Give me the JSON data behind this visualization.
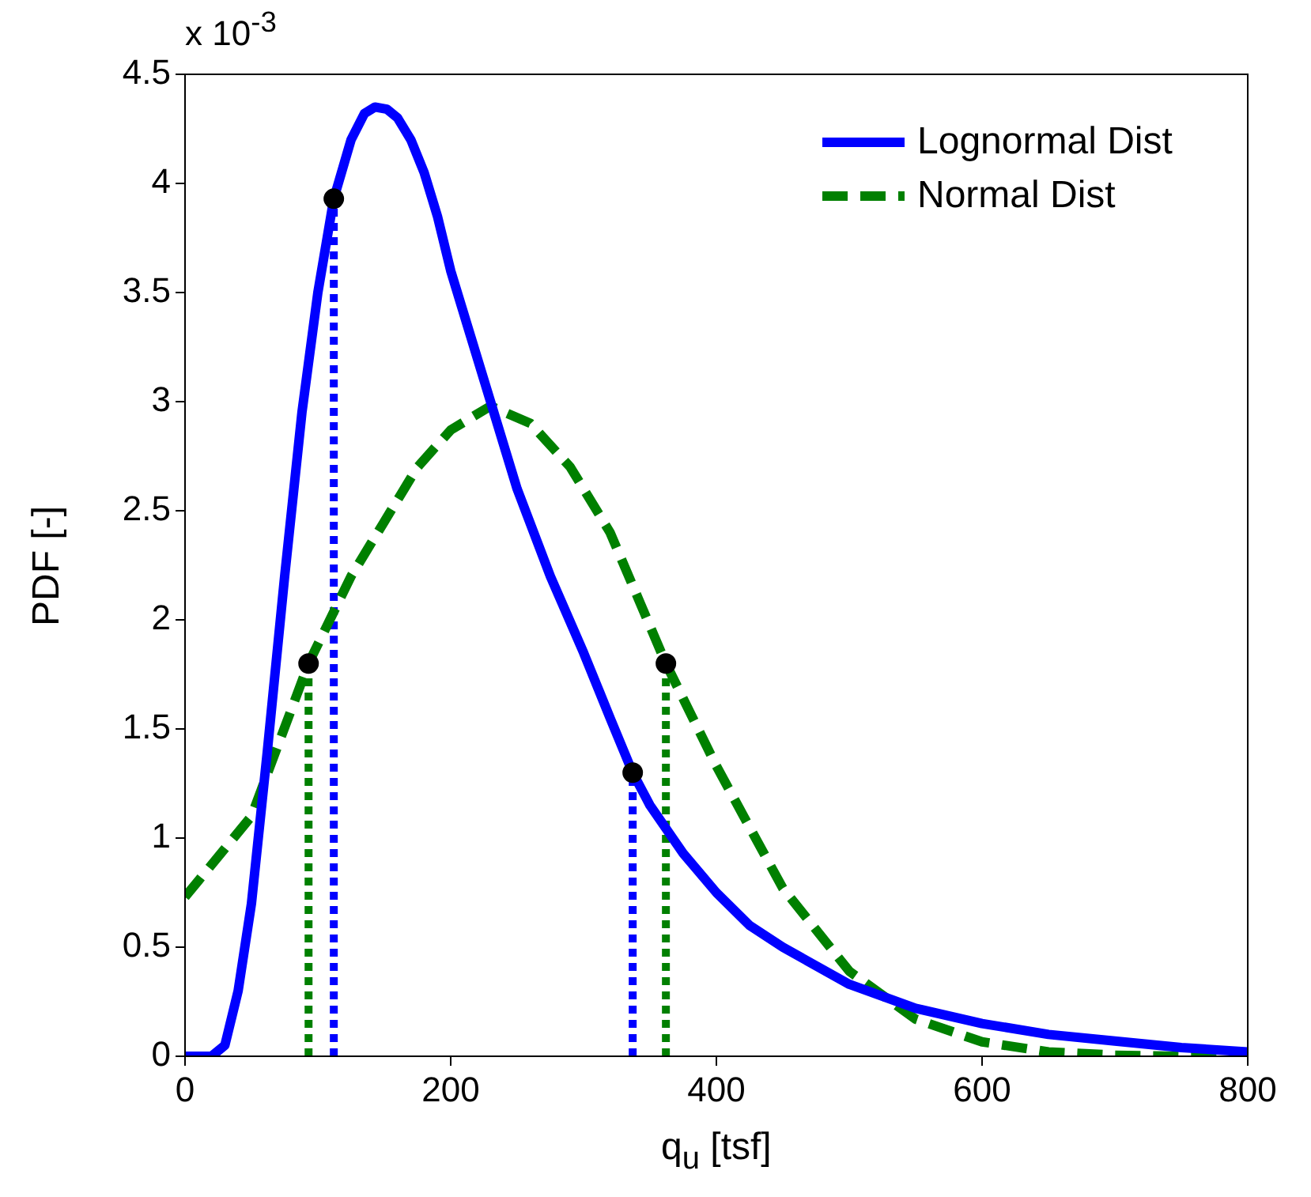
{
  "chart_data": {
    "type": "line",
    "xlabel": "q$_{u}$ [tsf]",
    "ylabel": "PDF [-]",
    "annotations": [
      "x 10$^{-3}$"
    ],
    "xlim": [
      0,
      800
    ],
    "xticks": [
      0,
      200,
      400,
      600,
      800
    ],
    "ylim": [
      0,
      4.5
    ],
    "yticks": [
      0,
      0.5,
      1,
      1.5,
      2,
      2.5,
      3,
      3.5,
      4,
      4.5
    ],
    "grid": false,
    "legend": "top right",
    "series": [
      {
        "name": "Lognormal Dist",
        "color": "#0000ff",
        "line_style": "solid",
        "marker": "none",
        "x": [
          0,
          20,
          30,
          40,
          50,
          62,
          75,
          88,
          100,
          112,
          125,
          135,
          143,
          152,
          160,
          170,
          180,
          190,
          200,
          215,
          230,
          250,
          275,
          300,
          320,
          337,
          350,
          375,
          400,
          425,
          450,
          500,
          550,
          600,
          650,
          700,
          750,
          800
        ],
        "values": [
          0,
          0,
          0.05,
          0.3,
          0.7,
          1.4,
          2.2,
          2.95,
          3.5,
          3.93,
          4.2,
          4.32,
          4.35,
          4.34,
          4.3,
          4.2,
          4.05,
          3.85,
          3.6,
          3.3,
          3.0,
          2.6,
          2.2,
          1.85,
          1.55,
          1.3,
          1.15,
          0.93,
          0.75,
          0.6,
          0.5,
          0.33,
          0.22,
          0.15,
          0.1,
          0.07,
          0.04,
          0.02
        ]
      },
      {
        "name": "Normal Dist",
        "color": "#008000",
        "line_style": "dashed",
        "marker": "none",
        "x": [
          0,
          50,
          93,
          125,
          150,
          175,
          200,
          230,
          260,
          290,
          320,
          362,
          400,
          450,
          500,
          550,
          600,
          650,
          700,
          750,
          800
        ],
        "values": [
          0.73,
          1.1,
          1.8,
          2.2,
          2.45,
          2.7,
          2.87,
          2.98,
          2.9,
          2.7,
          2.4,
          1.8,
          1.33,
          0.77,
          0.39,
          0.17,
          0.066,
          0.02,
          0.005,
          0,
          0
        ]
      },
      {
        "color": "#0000ff",
        "line_style": "dotted",
        "marker": "none",
        "x": [
          112,
          112
        ],
        "values": [
          0,
          3.93
        ]
      },
      {
        "color": "#0000ff",
        "line_style": "dotted",
        "marker": "none",
        "x": [
          337,
          337
        ],
        "values": [
          0,
          1.3
        ]
      },
      {
        "color": "#008000",
        "line_style": "dotted",
        "marker": "none",
        "x": [
          93,
          93
        ],
        "values": [
          0,
          1.8
        ]
      },
      {
        "color": "#008000",
        "line_style": "dotted",
        "marker": "none",
        "x": [
          362,
          362
        ],
        "values": [
          0,
          1.8
        ]
      },
      {
        "type": "scatter",
        "color": "#000000",
        "marker": "circle",
        "x": [
          93,
          112,
          337,
          362
        ],
        "values": [
          1.8,
          3.93,
          1.3,
          1.8
        ]
      }
    ]
  }
}
